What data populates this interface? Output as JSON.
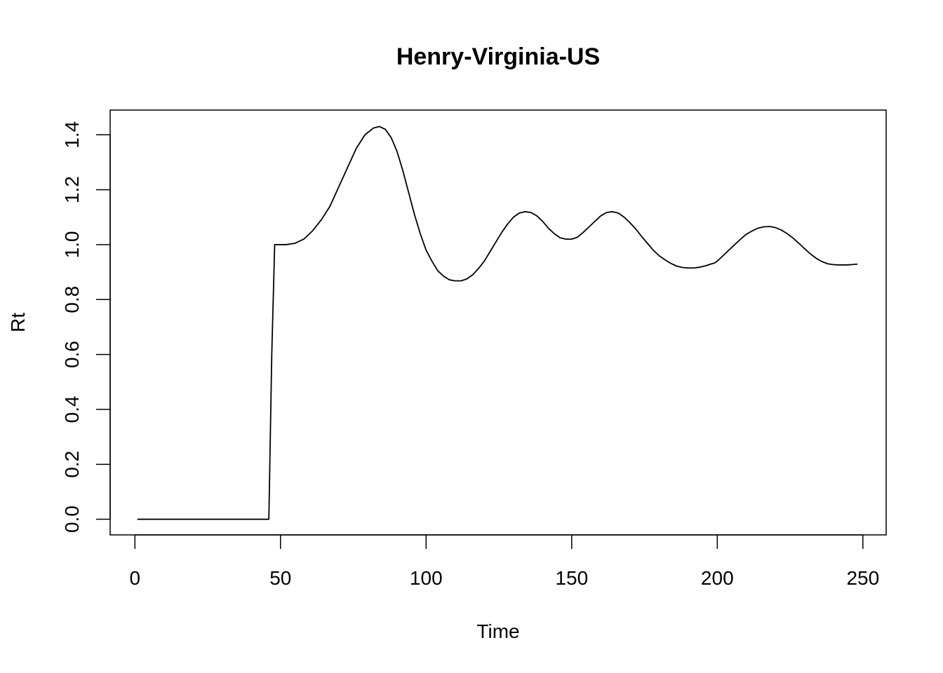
{
  "chart_data": {
    "type": "line",
    "title": "Henry-Virginia-US",
    "xlabel": "Time",
    "ylabel": "Rt",
    "xlim": [
      -8.5,
      258
    ],
    "ylim": [
      -0.057,
      1.49
    ],
    "x_ticks": [
      0,
      50,
      100,
      150,
      200,
      250
    ],
    "y_ticks": [
      0.0,
      0.2,
      0.4,
      0.6,
      0.8,
      1.0,
      1.2,
      1.4
    ],
    "x_tick_labels": [
      "0",
      "50",
      "100",
      "150",
      "200",
      "250"
    ],
    "y_tick_labels": [
      "0.0",
      "0.2",
      "0.4",
      "0.6",
      "0.8",
      "1.0",
      "1.2",
      "1.4"
    ],
    "grid": false,
    "legend": "none",
    "line_color": "#000000",
    "series": [
      {
        "x": [
          1,
          5,
          10,
          15,
          20,
          25,
          30,
          35,
          40,
          45,
          46,
          47,
          48,
          50,
          52,
          55,
          58,
          61,
          64,
          67,
          70,
          73,
          76,
          79,
          82,
          84,
          86,
          88,
          90,
          92,
          94,
          96,
          98,
          100,
          102,
          104,
          106,
          108,
          110,
          112,
          114,
          116,
          118,
          120,
          122,
          124,
          126,
          128,
          130,
          132,
          134,
          136,
          138,
          140,
          142,
          144,
          146,
          148,
          150,
          152,
          154,
          156,
          158,
          160,
          162,
          164,
          166,
          168,
          170,
          172,
          174,
          176,
          178,
          180,
          182,
          184,
          186,
          188,
          190,
          192,
          194,
          196,
          198,
          199,
          200,
          202,
          204,
          206,
          208,
          210,
          212,
          214,
          216,
          218,
          220,
          222,
          224,
          226,
          228,
          230,
          232,
          234,
          236,
          238,
          240,
          242,
          244,
          246,
          248
        ],
        "y": [
          0,
          0,
          0,
          0,
          0,
          0,
          0,
          0,
          0,
          0,
          0,
          0.6,
          1.0,
          1.0,
          1.0,
          1.005,
          1.02,
          1.05,
          1.09,
          1.14,
          1.21,
          1.28,
          1.35,
          1.4,
          1.425,
          1.43,
          1.42,
          1.39,
          1.34,
          1.27,
          1.19,
          1.11,
          1.04,
          0.98,
          0.94,
          0.905,
          0.885,
          0.872,
          0.868,
          0.868,
          0.875,
          0.89,
          0.913,
          0.94,
          0.975,
          1.01,
          1.045,
          1.075,
          1.1,
          1.115,
          1.12,
          1.117,
          1.105,
          1.085,
          1.06,
          1.04,
          1.025,
          1.02,
          1.02,
          1.027,
          1.045,
          1.065,
          1.085,
          1.105,
          1.117,
          1.12,
          1.115,
          1.1,
          1.08,
          1.057,
          1.03,
          1.005,
          0.98,
          0.96,
          0.945,
          0.932,
          0.922,
          0.917,
          0.915,
          0.915,
          0.918,
          0.923,
          0.93,
          0.933,
          0.94,
          0.96,
          0.98,
          1.0,
          1.02,
          1.038,
          1.05,
          1.06,
          1.065,
          1.066,
          1.062,
          1.053,
          1.04,
          1.024,
          1.005,
          0.985,
          0.966,
          0.95,
          0.938,
          0.93,
          0.927,
          0.926,
          0.926,
          0.927,
          0.929
        ]
      }
    ]
  }
}
